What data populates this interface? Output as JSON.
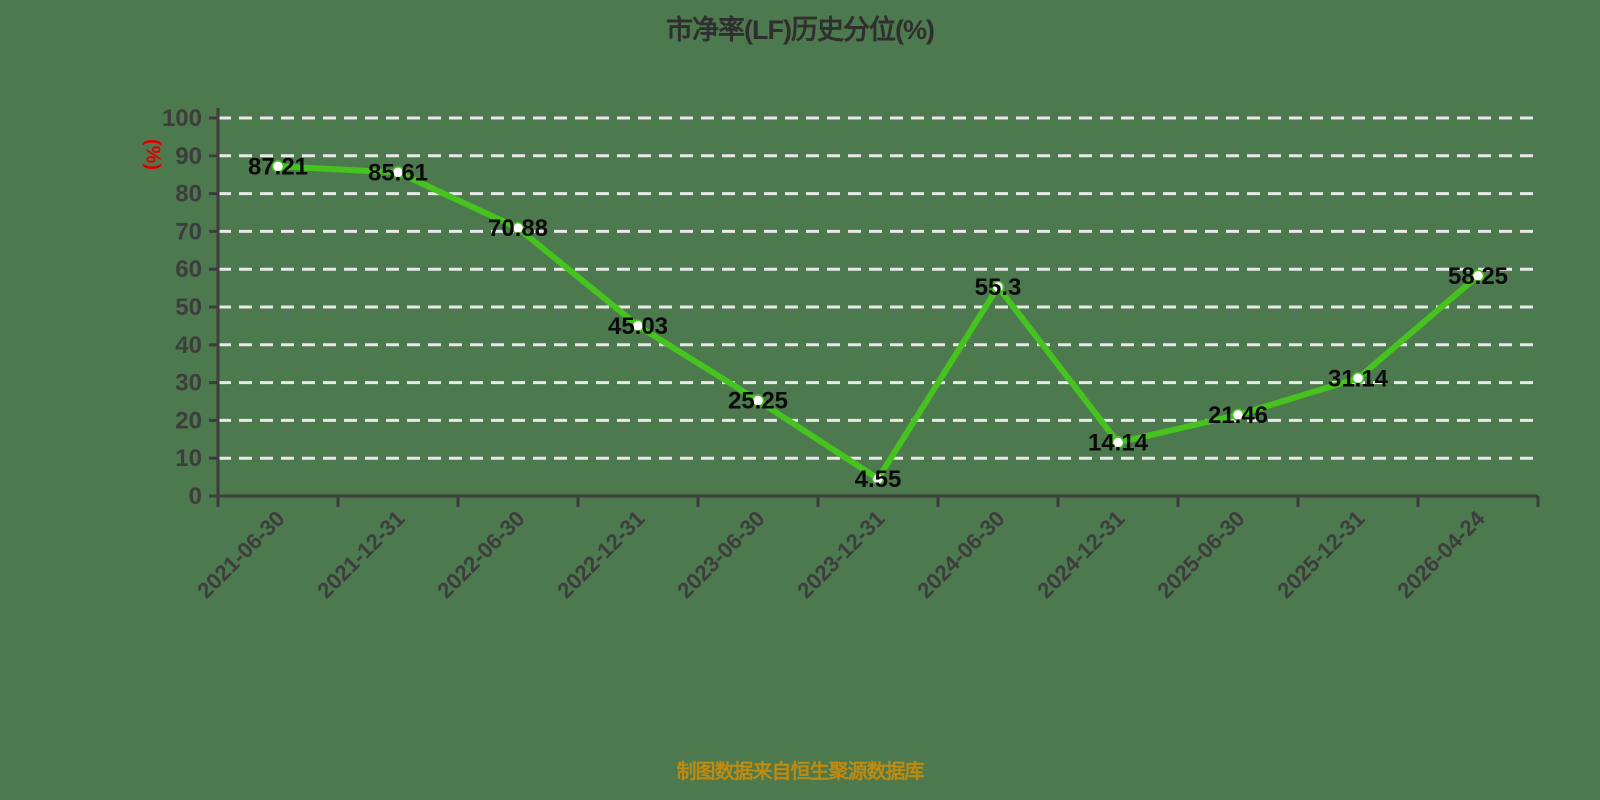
{
  "title": "市净率(LF)历史分位(%)",
  "footer": "制图数据来自恒生聚源数据库",
  "chart_data": {
    "type": "line",
    "title": "市净率(LF)历史分位(%)",
    "xlabel": "",
    "ylabel": "(%)",
    "categories": [
      "2021-06-30",
      "2021-12-31",
      "2022-06-30",
      "2022-12-31",
      "2023-06-30",
      "2023-12-31",
      "2024-06-30",
      "2024-12-31",
      "2025-06-30",
      "2025-12-31",
      "2026-04-24"
    ],
    "values": [
      87.21,
      85.61,
      70.88,
      45.03,
      25.25,
      4.55,
      55.3,
      14.14,
      21.46,
      31.14,
      58.25
    ],
    "data_labels": [
      "87.21",
      "85.61",
      "70.88",
      "45.03",
      "25.25",
      "4.55",
      "55.3",
      "14.14",
      "21.46",
      "31.14",
      "58.25"
    ],
    "ylim": [
      0,
      100
    ],
    "yticks": [
      0,
      10,
      20,
      30,
      40,
      50,
      60,
      70,
      80,
      90,
      100
    ],
    "grid": "horizontal-dashed",
    "legend": "none",
    "colors": {
      "background": "#4d794f",
      "line": "#46c31e",
      "marker_fill": "#ffffff",
      "grid": "#e8e8e8",
      "axis": "#3d3d3d",
      "data_label": "#0b0b0b",
      "title": "#2f2f2f",
      "y_unit": "#dd0000",
      "footer": "#c08a0e"
    }
  }
}
